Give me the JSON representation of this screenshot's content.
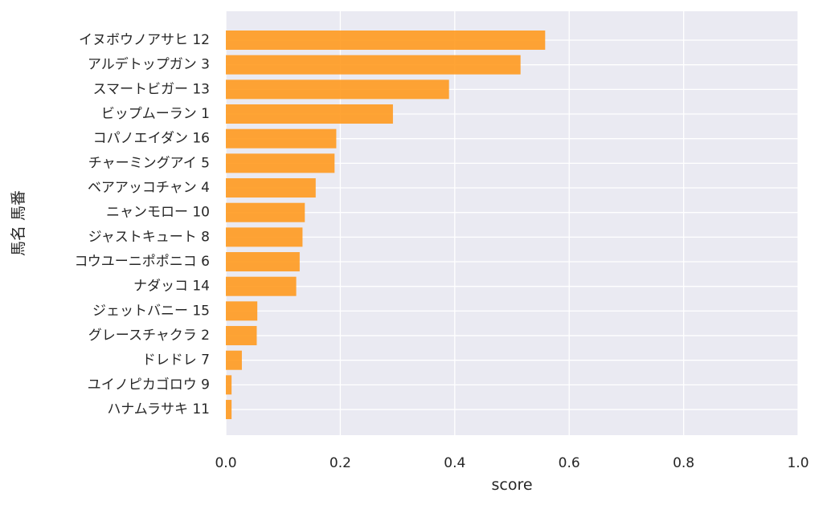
{
  "chart_data": {
    "type": "bar",
    "orientation": "horizontal",
    "title": "",
    "xlabel": "score",
    "ylabel": "馬名 馬番",
    "xlim": [
      0.0,
      1.0
    ],
    "xticks": [
      "0.0",
      "0.2",
      "0.4",
      "0.6",
      "0.8",
      "1.0"
    ],
    "grid": true,
    "categories": [
      "イヌボウノアサヒ 12",
      "アルデトップガン 3",
      "スマートビガー 13",
      "ビップムーラン 1",
      "コパノエイダン 16",
      "チャーミングアイ 5",
      "ベアアッコチャン 4",
      "ニャンモロー 10",
      "ジャストキュート 8",
      "コウユーニポポニコ 6",
      "ナダッコ 14",
      "ジェットバニー 15",
      "グレースチャクラ 2",
      "ドレドレ 7",
      "ユイノピカゴロウ 9",
      "ハナムラサキ 11"
    ],
    "values": [
      0.558,
      0.515,
      0.39,
      0.292,
      0.193,
      0.19,
      0.157,
      0.138,
      0.134,
      0.129,
      0.123,
      0.055,
      0.054,
      0.028,
      0.01,
      0.01
    ],
    "colors": {
      "bar": "#ff9a1f",
      "background": "#eaeaf2",
      "grid": "#ffffff"
    }
  }
}
